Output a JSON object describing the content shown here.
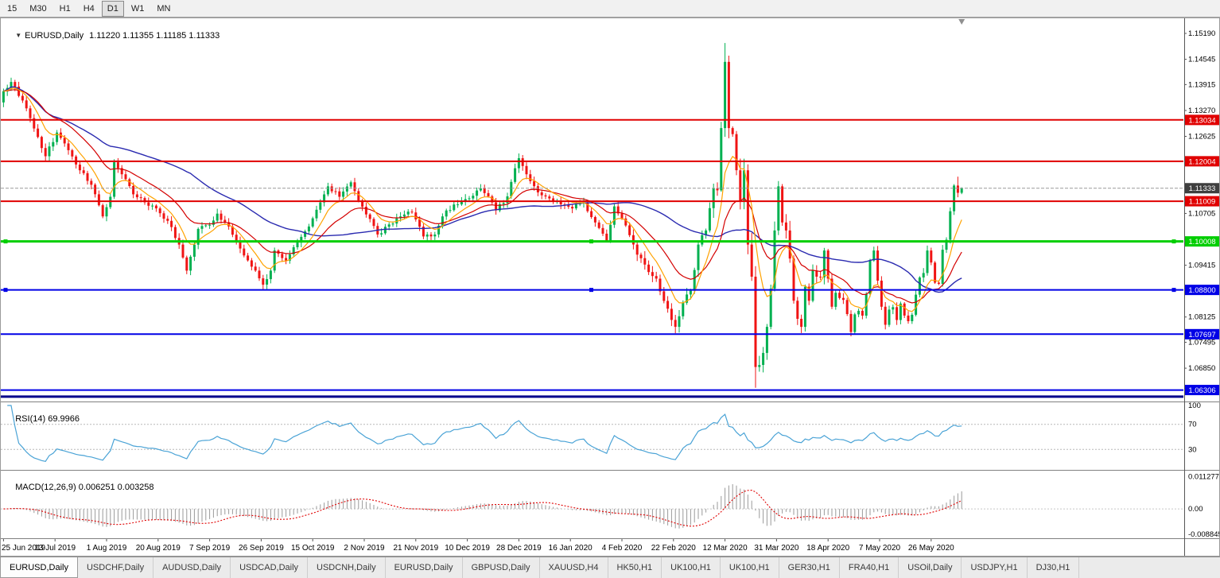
{
  "toolbar": {
    "periods": [
      {
        "label": "15",
        "active": false
      },
      {
        "label": "M30",
        "active": false
      },
      {
        "label": "H1",
        "active": false
      },
      {
        "label": "H4",
        "active": false
      },
      {
        "label": "D1",
        "active": true
      },
      {
        "label": "W1",
        "active": false
      },
      {
        "label": "MN",
        "active": false
      }
    ]
  },
  "chart_header": {
    "dropdown_icon": "▼",
    "symbol": "EURUSD,Daily",
    "ohlc": "1.11220 1.11355 1.11185 1.11333"
  },
  "chart_data": {
    "type": "candlestick",
    "symbol": "EURUSD",
    "timeframe": "Daily",
    "last_candle": {
      "open": 1.1122,
      "high": 1.11355,
      "low": 1.11185,
      "close": 1.11333
    },
    "n_candles": 252,
    "label_step": 13.5,
    "price_axis": {
      "view_range": [
        1.0602,
        1.15566
      ],
      "ticks": [
        [
          "1.15190",
          1.1519
        ],
        [
          "1.14545",
          1.14545
        ],
        [
          "1.13915",
          1.13915
        ],
        [
          "1.13270",
          1.1327
        ],
        [
          "1.12625",
          1.12625
        ],
        [
          "1.10705",
          1.10705
        ],
        [
          "1.09415",
          1.09415
        ],
        [
          "1.08125",
          1.08125
        ],
        [
          "1.07495",
          1.07495
        ],
        [
          "1.06850",
          1.0685
        ]
      ]
    },
    "current_price": {
      "value": 1.11333,
      "label": "1.11333",
      "badge_color": "#3f3f3f"
    },
    "hlines": [
      {
        "value": 1.13034,
        "label": "1.13034",
        "color": "#e00000",
        "width": 2
      },
      {
        "value": 1.12004,
        "label": "1.12004",
        "color": "#e00000",
        "width": 2
      },
      {
        "value": 1.11009,
        "label": "1.11009",
        "color": "#e00000",
        "width": 2
      },
      {
        "value": 1.10008,
        "label": "1.10008",
        "color": "#00ce00",
        "width": 3,
        "selected": true
      },
      {
        "value": 1.088,
        "label": "1.08800",
        "color": "#0000e6",
        "width": 2,
        "selected": true
      },
      {
        "value": 1.07697,
        "label": "1.07697",
        "color": "#0000e6",
        "width": 2
      },
      {
        "value": 1.06306,
        "label": "1.06306",
        "color": "#0000e6",
        "width": 2
      },
      {
        "value": 1.0614,
        "label": "",
        "color": "#00008b",
        "width": 3
      }
    ],
    "x_labels": [
      "25 Jun 2019",
      "13 Jul 2019",
      "1 Aug 2019",
      "20 Aug 2019",
      "7 Sep 2019",
      "26 Sep 2019",
      "15 Oct 2019",
      "2 Nov 2019",
      "21 Nov 2019",
      "10 Dec 2019",
      "28 Dec 2019",
      "16 Jan 2020",
      "4 Feb 2020",
      "22 Feb 2020",
      "12 Mar 2020",
      "31 Mar 2020",
      "18 Apr 2020",
      "7 May 2020",
      "26 May 2020"
    ],
    "price_anchors": [
      [
        0,
        1.1375
      ],
      [
        2,
        1.1398
      ],
      [
        5,
        1.1352
      ],
      [
        8,
        1.1282
      ],
      [
        11,
        1.1213
      ],
      [
        14,
        1.1272
      ],
      [
        17,
        1.1228
      ],
      [
        20,
        1.1178
      ],
      [
        23,
        1.1142
      ],
      [
        26,
        1.1063
      ],
      [
        28,
        1.1112
      ],
      [
        29,
        1.1198
      ],
      [
        31,
        1.1168
      ],
      [
        34,
        1.1118
      ],
      [
        37,
        1.1098
      ],
      [
        40,
        1.1083
      ],
      [
        43,
        1.1052
      ],
      [
        46,
        1.0993
      ],
      [
        48,
        1.0928
      ],
      [
        51,
        1.1032
      ],
      [
        54,
        1.1042
      ],
      [
        56,
        1.107
      ],
      [
        59,
        1.1038
      ],
      [
        62,
        1.0983
      ],
      [
        65,
        1.0938
      ],
      [
        68,
        1.0893
      ],
      [
        70,
        1.0928
      ],
      [
        71,
        1.0978
      ],
      [
        74,
        1.0953
      ],
      [
        77,
        1.0998
      ],
      [
        80,
        1.1038
      ],
      [
        83,
        1.1098
      ],
      [
        85,
        1.1138
      ],
      [
        88,
        1.1112
      ],
      [
        91,
        1.1148
      ],
      [
        93,
        1.1103
      ],
      [
        95,
        1.1068
      ],
      [
        98,
        1.1018
      ],
      [
        101,
        1.1043
      ],
      [
        104,
        1.1063
      ],
      [
        107,
        1.1073
      ],
      [
        110,
        1.1013
      ],
      [
        113,
        1.1018
      ],
      [
        116,
        1.1078
      ],
      [
        119,
        1.1093
      ],
      [
        122,
        1.1108
      ],
      [
        125,
        1.1133
      ],
      [
        127,
        1.1113
      ],
      [
        129,
        1.1078
      ],
      [
        132,
        1.1113
      ],
      [
        134,
        1.1183
      ],
      [
        135,
        1.1208
      ],
      [
        137,
        1.1168
      ],
      [
        140,
        1.1123
      ],
      [
        143,
        1.1108
      ],
      [
        146,
        1.1093
      ],
      [
        149,
        1.1083
      ],
      [
        152,
        1.1098
      ],
      [
        155,
        1.1048
      ],
      [
        158,
        1.1003
      ],
      [
        160,
        1.1088
      ],
      [
        162,
        1.1058
      ],
      [
        165,
        1.0993
      ],
      [
        168,
        1.0943
      ],
      [
        171,
        1.0908
      ],
      [
        174,
        1.0833
      ],
      [
        176,
        1.0788
      ],
      [
        178,
        1.0848
      ],
      [
        180,
        1.0878
      ],
      [
        182,
        1.0993
      ],
      [
        184,
        1.1028
      ],
      [
        186,
        1.1133
      ],
      [
        187,
        1.1128
      ],
      [
        188,
        1.1283
      ],
      [
        189,
        1.1448
      ],
      [
        190,
        1.1283
      ],
      [
        191,
        1.1268
      ],
      [
        192,
        1.1178
      ],
      [
        193,
        1.1103
      ],
      [
        194,
        1.1178
      ],
      [
        195,
        1.0993
      ],
      [
        196,
        1.0913
      ],
      [
        197,
        1.0688
      ],
      [
        198,
        1.0693
      ],
      [
        199,
        1.0723
      ],
      [
        200,
        1.0788
      ],
      [
        201,
        1.0883
      ],
      [
        202,
        1.1028
      ],
      [
        203,
        1.1138
      ],
      [
        204,
        1.1048
      ],
      [
        205,
        1.1028
      ],
      [
        206,
        1.0958
      ],
      [
        207,
        1.0853
      ],
      [
        208,
        1.0808
      ],
      [
        209,
        1.0788
      ],
      [
        210,
        1.0888
      ],
      [
        211,
        1.0853
      ],
      [
        212,
        1.0928
      ],
      [
        213,
        1.0913
      ],
      [
        214,
        1.0911
      ],
      [
        215,
        1.0978
      ],
      [
        216,
        1.0908
      ],
      [
        217,
        1.0838
      ],
      [
        218,
        1.0873
      ],
      [
        219,
        1.086
      ],
      [
        220,
        1.0855
      ],
      [
        221,
        1.082
      ],
      [
        222,
        1.0775
      ],
      [
        223,
        1.0819
      ],
      [
        224,
        1.0828
      ],
      [
        225,
        1.0816
      ],
      [
        226,
        1.087
      ],
      [
        227,
        1.0953
      ],
      [
        228,
        1.0978
      ],
      [
        229,
        1.0903
      ],
      [
        230,
        1.0838
      ],
      [
        231,
        1.0793
      ],
      [
        232,
        1.0831
      ],
      [
        233,
        1.0837
      ],
      [
        234,
        1.0805
      ],
      [
        235,
        1.0846
      ],
      [
        236,
        1.0816
      ],
      [
        237,
        1.0802
      ],
      [
        238,
        1.0818
      ],
      [
        240,
        1.0911
      ],
      [
        241,
        1.0922
      ],
      [
        242,
        1.0978
      ],
      [
        243,
        1.0948
      ],
      [
        244,
        1.0898
      ],
      [
        245,
        1.0895
      ],
      [
        246,
        1.098
      ],
      [
        247,
        1.1005
      ],
      [
        248,
        1.1076
      ],
      [
        249,
        1.114
      ],
      [
        250,
        1.1122
      ],
      [
        251,
        1.1133
      ]
    ],
    "wick_overrides": [
      [
        189,
        "h",
        1.1495
      ],
      [
        197,
        "l",
        1.0636
      ],
      [
        250,
        "h",
        1.1162
      ],
      [
        251,
        "h",
        1.11355
      ],
      [
        251,
        "l",
        1.11185
      ]
    ],
    "moving_averages": [
      {
        "type": "sma",
        "period": 50,
        "color": "#2a2ab0"
      },
      {
        "type": "ema",
        "period": 20,
        "color": "#d40000"
      },
      {
        "type": "ema",
        "period": 8,
        "color": "#ffa200"
      }
    ],
    "colors": {
      "up": "#00b050",
      "down": "#f01414",
      "background": "#ffffff"
    }
  },
  "indicators": {
    "rsi": {
      "label": "RSI(14)",
      "value": "69.9966",
      "period": 14,
      "line_color": "#4aa3d6",
      "levels": [
        [
          "100",
          100
        ],
        [
          "70",
          70
        ],
        [
          "30",
          30
        ]
      ]
    },
    "macd": {
      "label": "MACD(12,26,9)",
      "value": "0.006251 0.003258",
      "fast": 12,
      "slow": 26,
      "signal": 9,
      "view_range": [
        -0.01027,
        0.01337
      ],
      "axis": [
        [
          "0.011277",
          0.011277
        ],
        [
          "0.00",
          0
        ],
        [
          "-0.008845",
          -0.008845
        ]
      ],
      "hist_color": "#9a9a9a",
      "signal_color": "#e00000"
    }
  },
  "tabs": [
    {
      "label": "EURUSD,Daily",
      "active": true
    },
    {
      "label": "USDCHF,Daily",
      "active": false
    },
    {
      "label": "AUDUSD,Daily",
      "active": false
    },
    {
      "label": "USDCAD,Daily",
      "active": false
    },
    {
      "label": "USDCNH,Daily",
      "active": false
    },
    {
      "label": "EURUSD,Daily",
      "active": false
    },
    {
      "label": "GBPUSD,Daily",
      "active": false
    },
    {
      "label": "XAUUSD,H4",
      "active": false
    },
    {
      "label": "HK50,H1",
      "active": false
    },
    {
      "label": "UK100,H1",
      "active": false
    },
    {
      "label": "UK100,H1",
      "active": false
    },
    {
      "label": "GER30,H1",
      "active": false
    },
    {
      "label": "FRA40,H1",
      "active": false
    },
    {
      "label": "USOil,Daily",
      "active": false
    },
    {
      "label": "USDJPY,H1",
      "active": false
    },
    {
      "label": "DJ30,H1",
      "active": false
    }
  ]
}
